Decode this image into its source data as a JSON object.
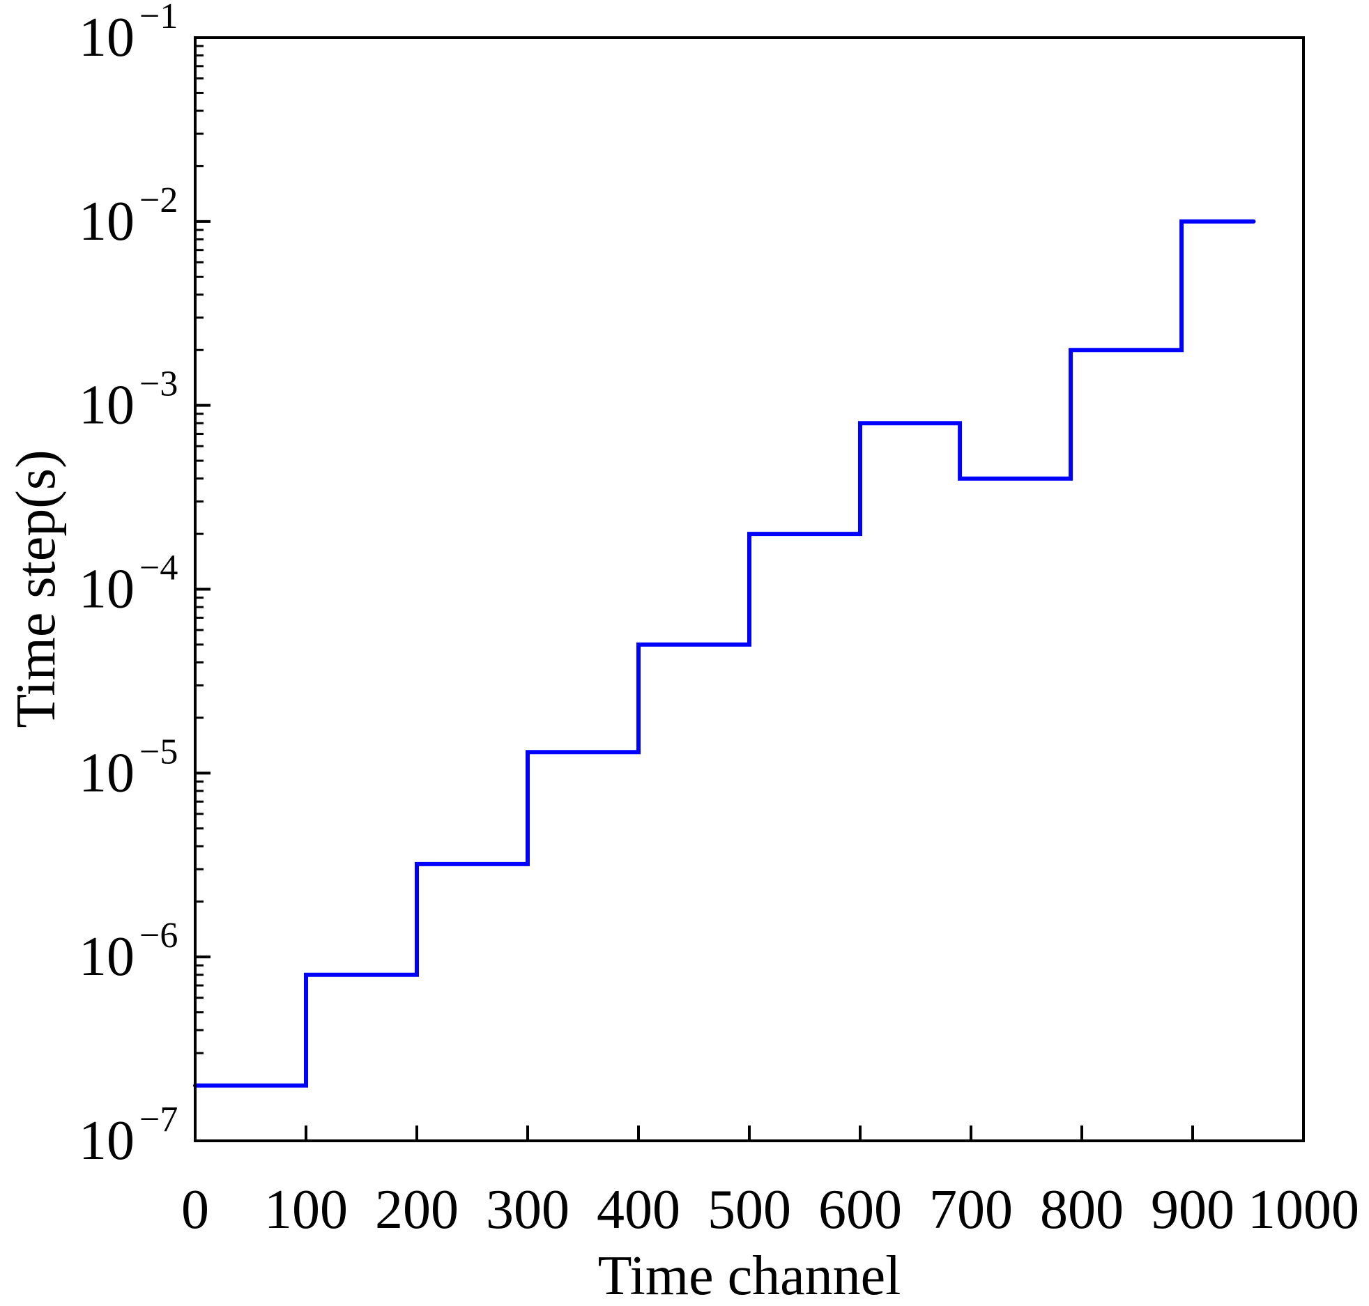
{
  "chart_data": {
    "type": "line",
    "title": "",
    "xlabel": "Time channel",
    "ylabel": "Time step(s)",
    "xlim": [
      0,
      1000
    ],
    "ylim": [
      1e-07,
      0.1
    ],
    "y_scale": "log",
    "grid": false,
    "legend": "none",
    "x_ticks": [
      {
        "value": 0,
        "label": "0"
      },
      {
        "value": 100,
        "label": "100"
      },
      {
        "value": 200,
        "label": "200"
      },
      {
        "value": 300,
        "label": "300"
      },
      {
        "value": 400,
        "label": "400"
      },
      {
        "value": 500,
        "label": "500"
      },
      {
        "value": 600,
        "label": "600"
      },
      {
        "value": 700,
        "label": "700"
      },
      {
        "value": 800,
        "label": "800"
      },
      {
        "value": 900,
        "label": "900"
      },
      {
        "value": 1000,
        "label": "1000"
      }
    ],
    "y_ticks": [
      {
        "exp": -7,
        "base": "10",
        "sup": "−7"
      },
      {
        "exp": -6,
        "base": "10",
        "sup": "−6"
      },
      {
        "exp": -5,
        "base": "10",
        "sup": "−5"
      },
      {
        "exp": -4,
        "base": "10",
        "sup": "−4"
      },
      {
        "exp": -3,
        "base": "10",
        "sup": "−3"
      },
      {
        "exp": -2,
        "base": "10",
        "sup": "−2"
      },
      {
        "exp": -1,
        "base": "10",
        "sup": "−1"
      }
    ],
    "series": [
      {
        "color": "#0000ff",
        "x": [
          0,
          100,
          100,
          200,
          200,
          300,
          300,
          400,
          400,
          500,
          500,
          600,
          600,
          690,
          690,
          790,
          790,
          890,
          890,
          955
        ],
        "y": [
          2e-07,
          2e-07,
          8e-07,
          8e-07,
          3.2e-06,
          3.2e-06,
          1.3e-05,
          1.3e-05,
          5e-05,
          5e-05,
          0.0002,
          0.0002,
          0.0008,
          0.0008,
          0.0004,
          0.0004,
          0.002,
          0.002,
          0.01,
          0.01
        ]
      }
    ]
  }
}
